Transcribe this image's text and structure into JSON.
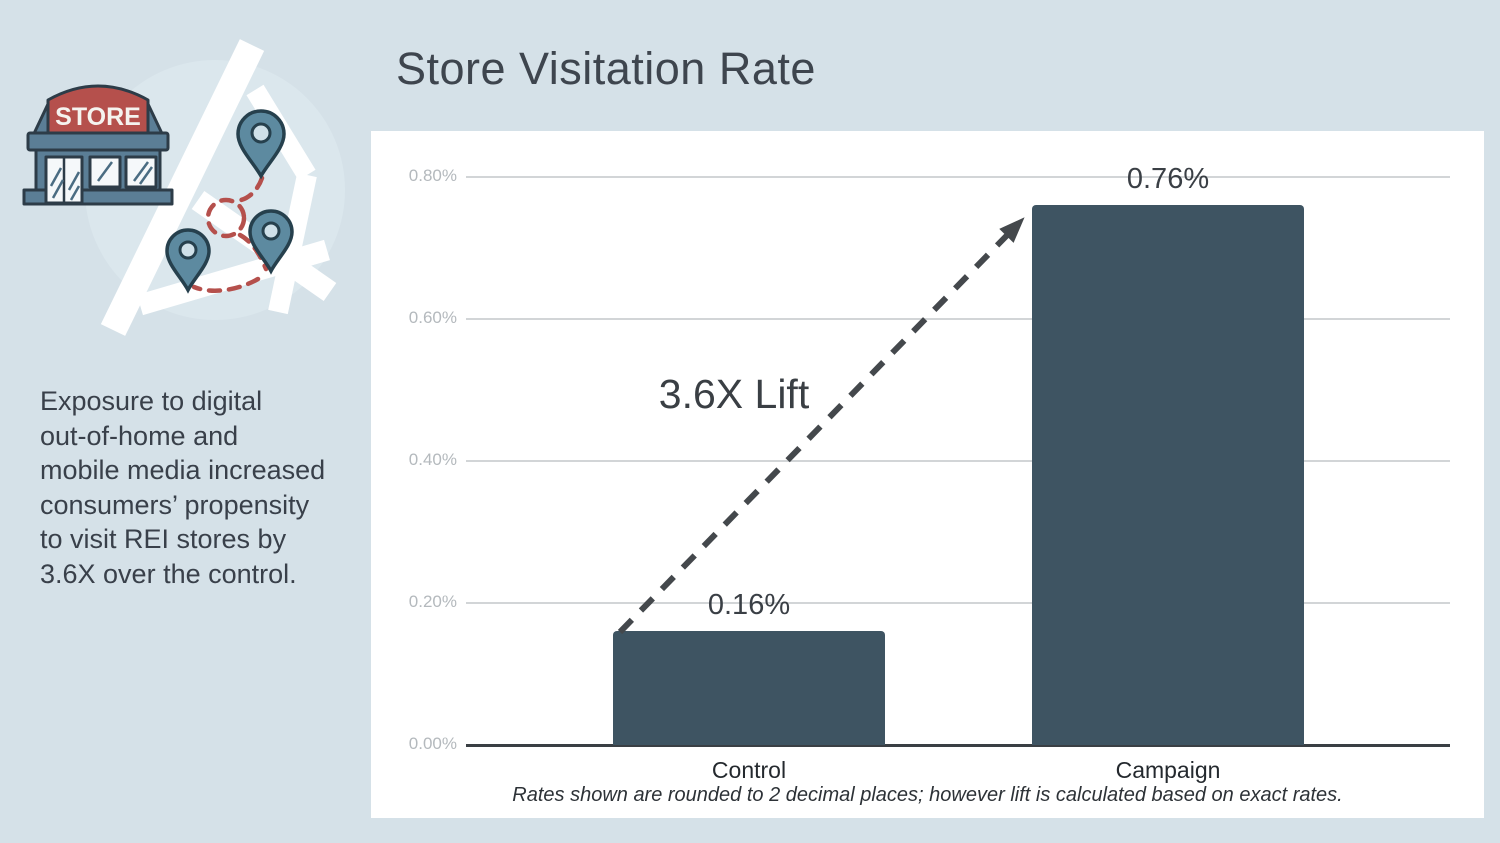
{
  "page": {
    "background_color": "#d5e1e8",
    "title": "Store Visitation Rate"
  },
  "sidebar": {
    "caption_lines": [
      "Exposure to digital",
      "out-of-home and",
      "mobile media increased",
      "consumers’ propensity",
      "to visit REI stores by",
      "3.6X over the control."
    ],
    "illustration": {
      "name": "store-map-illustration",
      "store_sign_text": "STORE",
      "pin_count": 3,
      "colors": {
        "store_red": "#b5504c",
        "building_blue": "#5b7e96",
        "pin_blue": "#5d8aa0",
        "trail_red": "#b5504c",
        "road_white": "#ffffff",
        "outline": "#2d3c48"
      }
    }
  },
  "chart_data": {
    "type": "bar",
    "title": "Store Visitation Rate",
    "categories": [
      "Control",
      "Campaign"
    ],
    "values": [
      0.16,
      0.76
    ],
    "value_labels": [
      "0.16%",
      "0.76%"
    ],
    "unit": "%",
    "ylim": [
      0,
      0.8
    ],
    "y_tick_values": [
      0.8,
      0.6,
      0.4,
      0.2,
      0
    ],
    "y_tick_labels": [
      "0.80%",
      "0.60%",
      "0.40%",
      "0.20%",
      "0.00%"
    ],
    "grid": true,
    "legend": false,
    "annotation": "3.6X Lift",
    "footnote": "Rates shown are rounded to 2 decimal places; however lift is calculated based on exact rates.",
    "bar_color": "#3e5462",
    "gridline_color": "#d2d5d7",
    "axis_color": "#3a3f44",
    "tick_label_color": "#b4b9bd"
  }
}
